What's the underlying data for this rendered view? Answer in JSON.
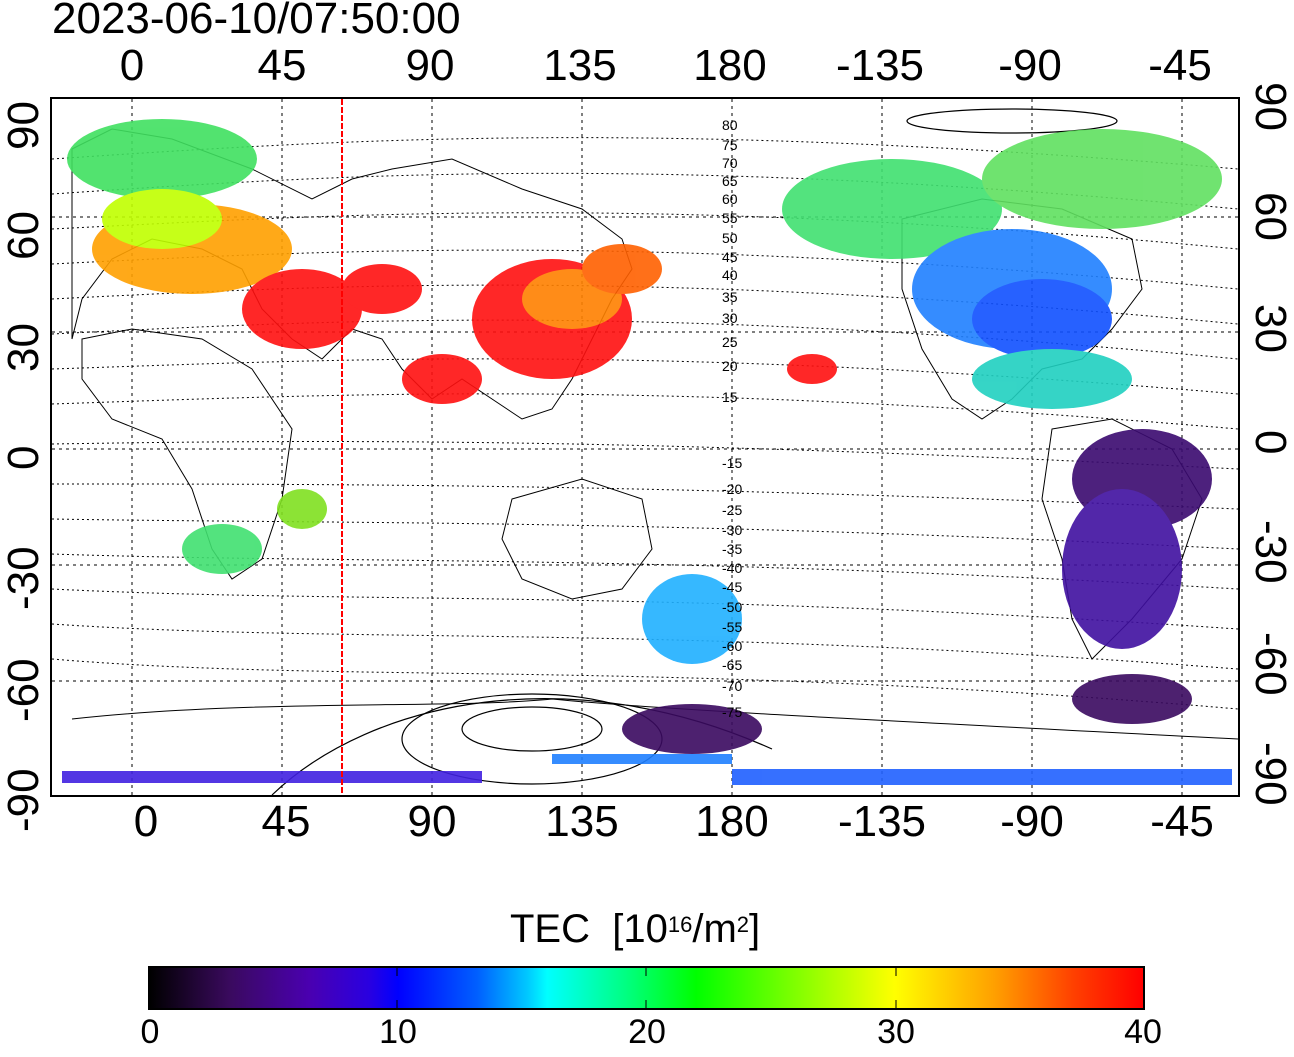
{
  "timestamp": "2023-06-10/07:50:00",
  "lon_ticks_top": [
    "0",
    "45",
    "90",
    "135",
    "180",
    "-135",
    "-90",
    "-45"
  ],
  "lon_ticks_bottom": [
    "0",
    "45",
    "90",
    "135",
    "180",
    "-135",
    "-90",
    "-45"
  ],
  "lat_ticks": [
    "90",
    "60",
    "30",
    "0",
    "-30",
    "-60",
    "-90"
  ],
  "magnetic_lat_labels": [
    "80",
    "75",
    "70",
    "65",
    "60",
    "55",
    "50",
    "45",
    "40",
    "35",
    "30",
    "25",
    "20",
    "15",
    "-15",
    "-20",
    "-25",
    "-30",
    "-35",
    "-40",
    "-45",
    "-50",
    "-55",
    "-60",
    "-65",
    "-70",
    "-75"
  ],
  "colorbar": {
    "title_main": "TEC",
    "title_unit_prefix": "[10",
    "title_unit_sup1": "16",
    "title_unit_mid": "/m",
    "title_unit_sup2": "2",
    "title_unit_suffix": "]",
    "tick_labels": [
      "0",
      "10",
      "20",
      "30",
      "40"
    ],
    "range": [
      0,
      40
    ]
  },
  "colors": {
    "sunset_line": "#ff0000",
    "high_tec": "#ff0000",
    "low_tec": "#3a0a5e"
  }
}
